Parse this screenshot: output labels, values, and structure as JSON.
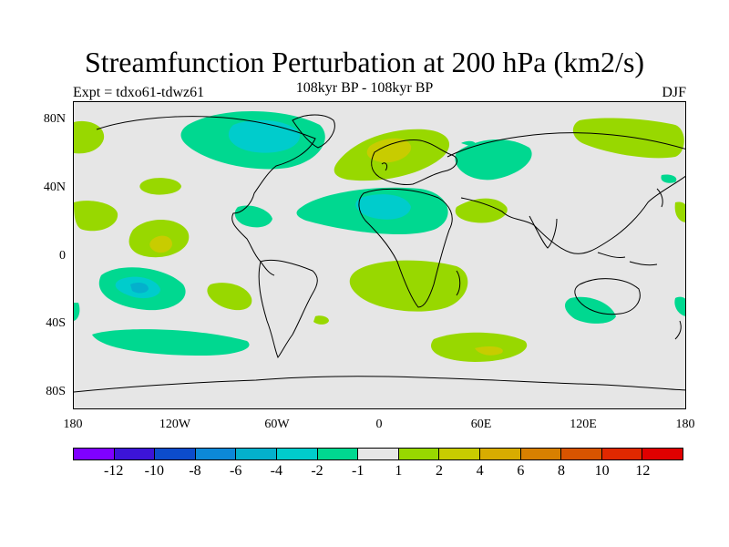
{
  "title": "Streamfunction Perturbation at 200 hPa (km2/s)",
  "subtitle": "108kyr BP - 108kyr BP",
  "left_label": "Expt = tdxo61-tdwz61",
  "right_label": "DJF",
  "y_axis": [
    "80N",
    "40N",
    "0",
    "40S",
    "80S"
  ],
  "x_axis": [
    "180",
    "120W",
    "60W",
    "0",
    "60E",
    "120E",
    "180"
  ],
  "colorbar": {
    "colors": [
      "#7f00ff",
      "#3c14d8",
      "#0c4ccc",
      "#0c88d8",
      "#04b0cc",
      "#00cccc",
      "#00d890",
      "#e6e6e6",
      "#98d800",
      "#c8cc00",
      "#d8ac00",
      "#d88000",
      "#d85400",
      "#e02800",
      "#e00000"
    ],
    "labels": [
      "-12",
      "-10",
      "-8",
      "-6",
      "-4",
      "-2",
      "-1",
      "1",
      "2",
      "4",
      "6",
      "8",
      "10",
      "12"
    ]
  },
  "fill_colors": {
    "neg1": "#00d890",
    "neg2": "#00cccc",
    "neg3": "#04b0cc",
    "pos1": "#98d800",
    "pos2": "#c8cc00",
    "pos3": "#d8ac00",
    "ocean": "#e6e6e6"
  }
}
